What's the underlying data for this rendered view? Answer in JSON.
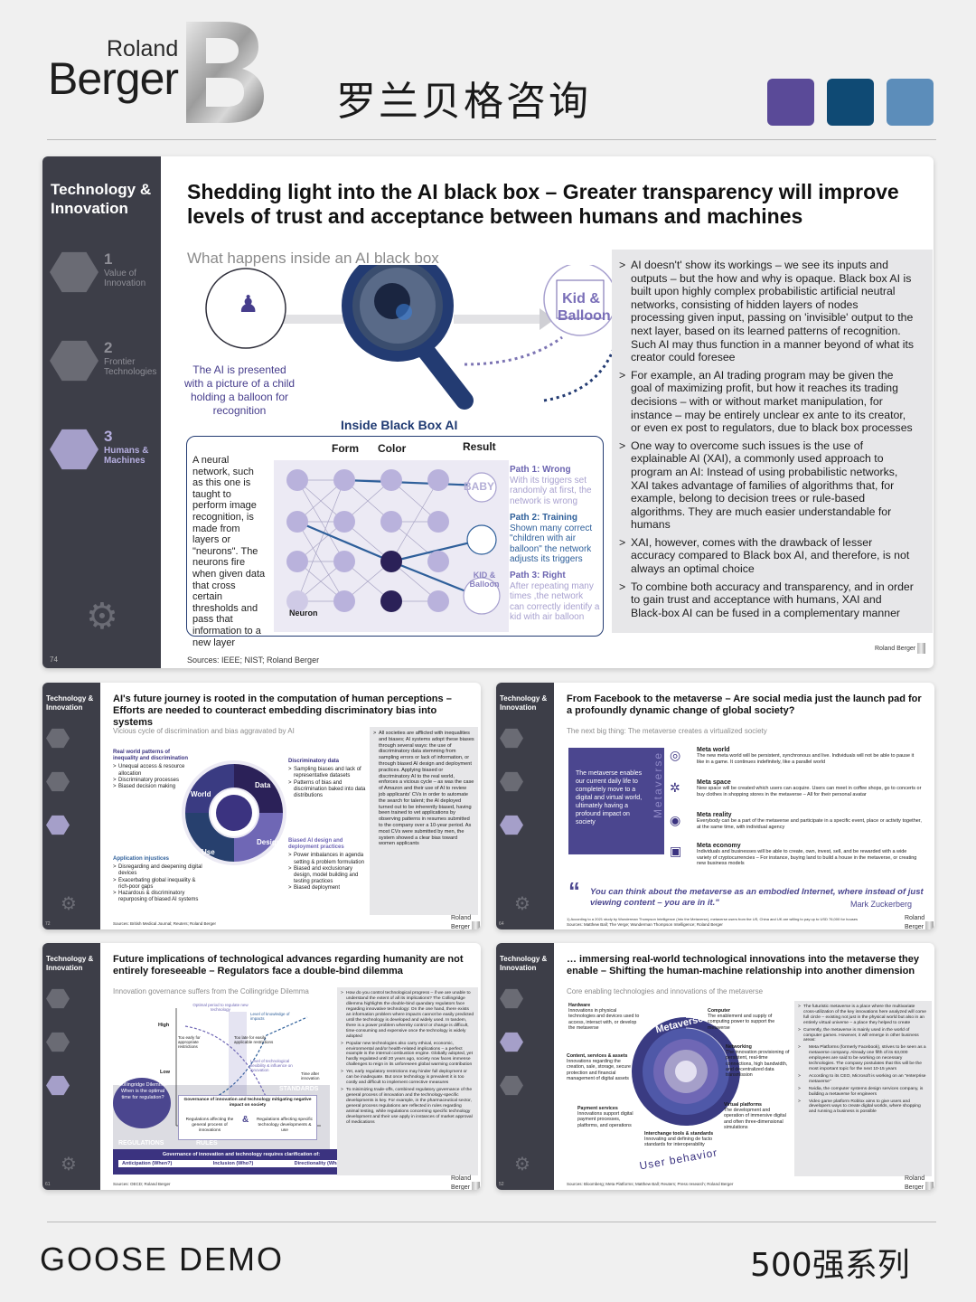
{
  "header": {
    "brand_roland": "Roland",
    "brand_berger": "Berger",
    "chinese_title": "罗兰贝格咨询",
    "swatch_colors": [
      "#5a4a98",
      "#0f4a74",
      "#5c8dba"
    ]
  },
  "main_slide": {
    "section": "Technology & Innovation",
    "nav": [
      {
        "num": "1",
        "label": "Value of Innovation"
      },
      {
        "num": "2",
        "label": "Frontier Technologies"
      },
      {
        "num": "3",
        "label": "Humans & Machines"
      }
    ],
    "page_number": "74",
    "title": "Shedding light into the AI black box – Greater transparency will improve levels of trust and acceptance between humans and machines",
    "subtitle": "What happens inside an AI black box",
    "child_caption": "The AI is presented with a picture of a child holding a balloon for recognition",
    "kid_balloon": "Kid & Balloon",
    "inside_title": "Inside Black Box AI",
    "col_form": "Form",
    "col_color": "Color",
    "col_result": "Result",
    "neuron_label": "Neuron",
    "network_text": "A neural network, such as this one is taught to perform image recognition, is made from layers or \"neurons\". The neurons fire when given data that cross certain thresholds and pass that information to a new layer",
    "baby": "BABY",
    "kid_balloon_small": "KID & Balloon",
    "paths": [
      {
        "title": "Path 1: Wrong",
        "text": "With its triggers set randomly at first, the network is wrong"
      },
      {
        "title": "Path 2: Training",
        "text": "Shown many correct \"children with air balloon\" the network adjusts its triggers"
      },
      {
        "title": "Path 3: Right",
        "text": "After repeating many times ,the network can correctly identify a kid with air balloon"
      }
    ],
    "bullets": [
      "AI doesn't' show its workings – we see its inputs and outputs – but the how and why is opaque. Black box AI is built upon highly complex probabilistic artificial neutral networks, consisting of hidden layers of nodes processing given input, passing on 'invisible' output to the next layer, based on its learned patterns of recognition. Such AI may thus function in a manner beyond of what its creator could foresee",
      "For example, an AI trading program may be given the goal of maximizing profit, but how it reaches its trading decisions – with or without market manipulation, for instance – may be entirely unclear ex ante to its creator, or even ex post to regulators, due to black box processes",
      "One way to overcome such issues is the use of explainable AI (XAI), a commonly used approach to program an AI: Instead of using probabilistic networks, XAI takes advantage of families of algorithms that, for example, belong to decision trees or rule-based algorithms. They are much easier understandable for humans",
      "XAI, however, comes with the drawback of lesser accuracy compared to Black box AI, and therefore, is not always an optimal choice",
      "To combine both accuracy and transparency, and in order to gain trust and acceptance with humans, XAI and Black-box AI can be fused in a complementary manner"
    ],
    "sources": "Sources: IEEE; NIST; Roland Berger",
    "logo_small": "Roland Berger"
  },
  "slide_tl": {
    "section": "Technology & Innovation",
    "title": "AI's future journey is rooted in the computation of human perceptions – Efforts are needed to counteract embedding discriminatory bias into systems",
    "subtitle": "Vicious cycle of discrimination and bias aggravated by AI",
    "real_world_head": "Real world patterns of inequality and discrimination",
    "real_world_items": [
      "Unequal access & resource allocation",
      "Discriminatory processes",
      "Biased decision making"
    ],
    "disc_data_head": "Discriminatory data",
    "disc_data_items": [
      "Sampling biases and lack of representative datasets",
      "Patterns of bias and discrimination baked into data distributions"
    ],
    "app_head": "Application injustices",
    "app_items": [
      "Disregarding and deepening digital devices",
      "Exacerbating global inequality & rich-poor gaps",
      "Hazardous & discriminatory repurposing of biased AI systems"
    ],
    "design_head": "Biased AI design and deployment practices",
    "design_items": [
      "Power imbalances in agenda setting & problem formulation",
      "Biased and exclusionary design, model building and testing practices",
      "Biased deployment"
    ],
    "cycle_world": "World",
    "cycle_data": "Data",
    "cycle_design": "Design",
    "cycle_use": "Use",
    "right_text": "All societies are afflicted with inequalities and biases; AI systems adopt these biases through several ways: the use of discriminatory data stemming from sampling errors or lack of information, or through biased AI design and deployment practices. Applying biased or discriminatory AI to the real world, enforces a vicious cycle – as was the case of Amazon and their use of AI to review job applicants' CVs in order to automate the search for talent; the AI deployed turned out to be inherently biased, having been trained to vet applications by observing patterns in resumes submitted to the company over a 10-year period. As most CVs were submitted by men, the system showed a clear bias toward women applicants",
    "page_number": "72",
    "sources": "Sources: British Medical Journal; Reuters; Roland Berger"
  },
  "slide_tr": {
    "section": "Technology & Innovation",
    "title": "From Facebook to the metaverse – Are social media just the launch pad for a profoundly dynamic change of global society?",
    "subtitle": "The next big thing: The metaverse creates a virtualized society",
    "box_text": "The metaverse enables our current daily life to completely move to a digital and virtual world, ultimately having a profound impact on society",
    "vertical_word": "Metaverse",
    "items": [
      {
        "head": "Meta world",
        "text": "The new meta world will be persistent, synchronous and live. Individuals will not be able to pause it like in a game. It continues indefinitely, like a parallel world"
      },
      {
        "head": "Meta space",
        "text": "New space will be created which users can acquire. Users can meet in coffee shops, go to concerts or buy clothes in shopping stores in the metaverse – All for their personal avatar"
      },
      {
        "head": "Meta reality",
        "text": "Everybody can be a part of the metaverse and participate in a specific event, place or activity together, at the same time, with individual agency"
      },
      {
        "head": "Meta economy",
        "text": "Individuals and businesses will be able to create, own, invest, sell, and be rewarded with a wide variety of cryptocurrencies – For instance, buying land to build a house in the metaverse, or creating new business models"
      }
    ],
    "quote": "You can think about the metaverse as an embodied Internet, where instead of just viewing content – you are in it.\"",
    "quote_author": "Mark Zuckerberg",
    "footnote": "1) According to a 2021 study by Wunderman Thompson Intelligence (Into the Metaverse), metaverse users from the US, China and UK are willing to pay up to USD 76,000 for houses",
    "sources": "Sources: Matthew Ball; The Verge; Wunderman Thompson Intelligence; Roland Berger",
    "page_number": "64"
  },
  "slide_bl": {
    "section": "Technology & Innovation",
    "title": "Future implications of technological advances regarding humanity are not entirely foreseeable – Regulators face a double-bind dilemma",
    "subtitle": "Innovation governance suffers from the Collingridge Dilemma",
    "chart_labels": {
      "optimal": "Optimal period to regulate new technology",
      "knowledge": "Level of knowledge of impacts",
      "high": "High",
      "low": "Low",
      "too_early": "Too early for appropriate restrictions",
      "too_late": "Too late for easily applicable restrictions",
      "flex": "Level of technological flexibility & influence on innovation",
      "time_after": "Time after innovation",
      "standards": "STANDARDS",
      "regulations": "REGULATIONS",
      "rules": "RULES"
    },
    "dilemma": "Collingridge Dilemma: When is the optimal time for regulation?",
    "gov_head": "Governance of innovation and technology mitigating negative impact on society",
    "reg_general": "Regulations affecting the general process of innovations",
    "amp": "&",
    "reg_specific": "Regulations affecting specific technology developments & use",
    "bottom_bar": "Governance of innovation and technology requires clarification of:",
    "bottom_items": [
      "Anticipation (When?)",
      "Inclusion (Who?)",
      "Directionality (What? Why?)"
    ],
    "right_text": [
      "How do you control technological progress – if we are unable to understand the extent of all its implications? The Collingridge dilemma highlights the double-bind quandary regulators face regarding innovative technology: On the one hand, there exists an information problem where impacts cannot be easily predicted until the technology is developed and widely used. In tandem, there is a power problem whereby control or change is difficult, time-consuming and expensive once the technology is widely adopted",
      "Popular new technologies also carry ethical, economic, environmental and/or health-related implications – a perfect example is the internal combustion engine. Globally adopted, yet hardly regulated until 20 years ago, society now faces immense challenges to reign in its unforeseen global warming contribution",
      "Yet, early regulatory restrictions may hinder full deployment or can be inadequate. But once technology is prevalent it is too costly and difficult to implement corrective measures",
      "To minimizing trade-offs, combined regulatory governance of the general process of innovation and the technology-specific developments is key. For example, in the pharmaceutical sector, general process regulations are reflected in rules regarding animal testing, while regulations concerning specific technology development and their use apply in instances of market approval of medications"
    ],
    "page_number": "61",
    "sources": "Sources: OECD; Roland Berger"
  },
  "slide_br": {
    "section": "Technology & Innovation",
    "title": "… immersing real-world technological innovations into the metaverse they enable – Shifting the human-machine relationship into another dimension",
    "subtitle": "Core enabling technologies and innovations of the metaverse",
    "center_word": "Metaverse",
    "arc_word": "User behavior",
    "items": [
      {
        "head": "Hardware",
        "text": "Innovations in physical technologies and devices used to access, interact with, or develop the metaverse"
      },
      {
        "head": "Computer",
        "text": "The enablement and supply of computing power to support the metaverse"
      },
      {
        "head": "Content, services & assets",
        "text": "Innovations regarding the creation, sale, storage, secure protection and financial management of digital assets"
      },
      {
        "head": "Networking",
        "text": "The innovation provisioning of persistent, real-time connections, high bandwidth, and decentralized data transmission"
      },
      {
        "head": "Payment services",
        "text": "Innovations support digital payment processes, platforms, and operations"
      },
      {
        "head": "Virtual platforms",
        "text": "The development and operation of immersive digital and often three-dimensional simulations"
      },
      {
        "head": "Interchange tools & standards",
        "text": "Innovating and defining de facto standards for interoperability"
      }
    ],
    "right_text": [
      "The futuristic metaverse is a place where the multivariate cross-utilization of the key innovations here analyzed will come full circle – existing not just in the physical world but also in an entirely virtual universe – a place they helped to create",
      "Currently, the metaverse is mainly used in the world of computer games. However, it will emerge in other business areas:",
      "Meta Platforms (formerly Facebook), strives to be seen as a metaverse company. Already one fifth of its 63,000 employees are said to be working on necessary technologies. The company postulates that this will be the most important topic for the next 10-15 years",
      "According to its CEO, Microsoft is working on an \"enterprise metaverse\"",
      "Nvidia, the computer systems design services company, is building a metaverse for engineers",
      "Video game platform Roblox aims to give users and developers ways to create digital worlds, where shopping and running a business is possible"
    ],
    "page_number": "52",
    "sources": "Sources: Bloomberg; Meta Platforms; Matthew Ball; Reuters; Press research; Roland Berger"
  },
  "footer": {
    "left": "GOOSE DEMO",
    "right": "500强系列"
  }
}
